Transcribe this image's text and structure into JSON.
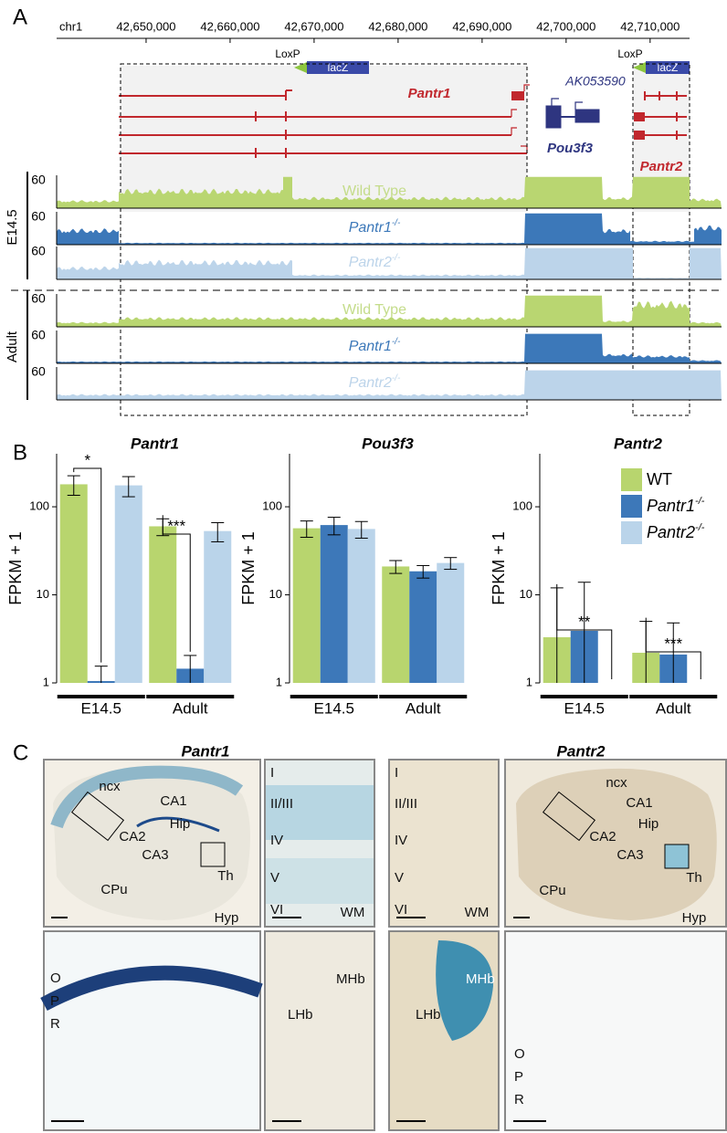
{
  "panel_a": {
    "label": "A",
    "chromosome": "chr1",
    "xlim": [
      42639350,
      42718500
    ],
    "coordinates": [
      {
        "value": 42650000,
        "label": "42,650,000"
      },
      {
        "value": 42660000,
        "label": "42,660,000"
      },
      {
        "value": 42670000,
        "label": "42,670,000"
      },
      {
        "value": 42680000,
        "label": "42,680,000"
      },
      {
        "value": 42690000,
        "label": "42,690,000"
      },
      {
        "value": 42700000,
        "label": "42,700,000"
      },
      {
        "value": 42710000,
        "label": "42,710,000"
      }
    ],
    "loxp": "LoxP",
    "lacz": "lacZ",
    "genes": [
      "Pantr1",
      "AK053590",
      "Pou3f3",
      "Pantr2"
    ],
    "track_max": 60,
    "groups": [
      {
        "name": "E14.5",
        "tracks": [
          {
            "label": "Wild Type"
          },
          {
            "label": "Pantr1",
            "superscript": "-/-"
          },
          {
            "label": "Pantr2",
            "superscript": "-/-"
          }
        ]
      },
      {
        "name": "Adult",
        "tracks": [
          {
            "label": "Wild Type"
          },
          {
            "label": "Pantr1",
            "superscript": "-/-"
          },
          {
            "label": "Pantr2",
            "superscript": "-/-"
          }
        ]
      }
    ]
  },
  "panel_b": {
    "label": "B"
  },
  "chart_data": [
    {
      "type": "bar",
      "title": "Pantr1",
      "ylabel": "FPKM + 1",
      "log_scale": true,
      "ylim": [
        1,
        400
      ],
      "yticks": [
        1,
        10,
        100
      ],
      "categories": [
        "E14.5",
        "Adult"
      ],
      "series": [
        {
          "name": "WT",
          "color": "#b8d56e",
          "values": [
            180,
            60
          ],
          "errors": [
            45,
            13
          ]
        },
        {
          "name": "Pantr1",
          "superscript": "-/-",
          "color": "#3d78b9",
          "values": [
            1.05,
            1.45
          ],
          "errors": [
            0.5,
            0.6
          ]
        },
        {
          "name": "Pantr2",
          "superscript": "-/-",
          "color": "#bad4ea",
          "values": [
            175,
            53
          ],
          "errors": [
            45,
            13
          ]
        }
      ],
      "annotations": [
        "*",
        "***"
      ]
    },
    {
      "type": "bar",
      "title": "Pou3f3",
      "ylabel": "FPKM + 1",
      "log_scale": true,
      "ylim": [
        1,
        400
      ],
      "yticks": [
        1,
        10,
        100
      ],
      "categories": [
        "E14.5",
        "Adult"
      ],
      "series": [
        {
          "name": "WT",
          "color": "#b8d56e",
          "values": [
            57,
            21
          ],
          "errors": [
            12,
            3.5
          ]
        },
        {
          "name": "Pantr1",
          "superscript": "-/-",
          "color": "#3d78b9",
          "values": [
            62,
            18.5
          ],
          "errors": [
            14,
            3
          ]
        },
        {
          "name": "Pantr2",
          "superscript": "-/-",
          "color": "#bad4ea",
          "values": [
            56,
            23
          ],
          "errors": [
            12,
            3.5
          ]
        }
      ]
    },
    {
      "type": "bar",
      "title": "Pantr2",
      "ylabel": "FPKM + 1",
      "log_scale": true,
      "ylim": [
        1,
        400
      ],
      "yticks": [
        1,
        10,
        100
      ],
      "categories": [
        "E14.5",
        "Adult"
      ],
      "legend": "upper right",
      "series": [
        {
          "name": "WT",
          "color": "#b8d56e",
          "values": [
            3.3,
            2.2
          ],
          "errors": [
            8.7,
            2.8
          ]
        },
        {
          "name": "Pantr1",
          "superscript": "-/-",
          "color": "#3d78b9",
          "values": [
            3.9,
            2.1
          ],
          "errors": [
            10,
            2.7
          ]
        },
        {
          "name": "Pantr2",
          "superscript": "-/-",
          "color": "#bad4ea",
          "values": [
            1,
            1
          ],
          "errors": [
            0,
            0
          ]
        }
      ],
      "annotations": [
        "**",
        "***"
      ]
    }
  ],
  "panel_c": {
    "label": "C",
    "titles": [
      "Pantr1",
      "Pantr2"
    ],
    "images": [
      {
        "labels": [
          "ncx",
          "CA1",
          "CA2",
          "Hip",
          "CA3",
          "CPu",
          "Th",
          "Hyp"
        ]
      },
      {
        "labels": [
          "I",
          "II/III",
          "IV",
          "V",
          "VI",
          "WM"
        ]
      },
      {
        "labels": [
          "I",
          "II/III",
          "IV",
          "V",
          "VI",
          "WM"
        ]
      },
      {
        "labels": [
          "ncx",
          "CA1",
          "CA2",
          "Hip",
          "CA3",
          "CPu",
          "Th",
          "Hyp"
        ]
      },
      {
        "labels": [
          "O",
          "P",
          "R"
        ]
      },
      {
        "labels": [
          "LHb",
          "MHb"
        ]
      },
      {
        "labels": [
          "LHb",
          "MHb"
        ]
      },
      {
        "labels": [
          "O",
          "P",
          "R"
        ]
      }
    ]
  }
}
